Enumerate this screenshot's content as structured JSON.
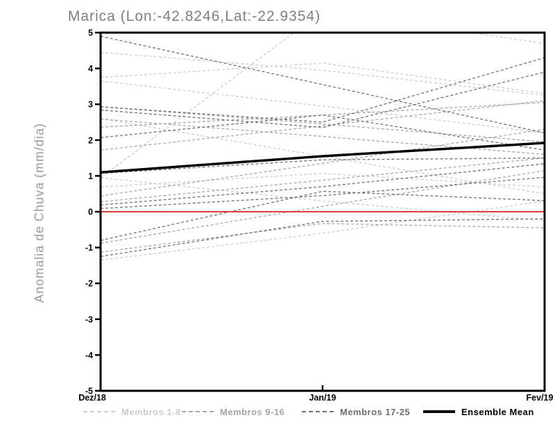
{
  "window": {
    "background": "#ffffff"
  },
  "chart_data": {
    "type": "line",
    "title": "Marica (Lon:-42.8246,Lat:-22.9354)",
    "ylabel": "Anomalia de Chuva (mm/dia)",
    "x_categories": [
      "Dez/18",
      "Jan/19",
      "Fev/19"
    ],
    "ylim": [
      -5,
      5
    ],
    "yticks": [
      5,
      4,
      3,
      2,
      1,
      0,
      -1,
      -2,
      -3,
      -4,
      -5
    ],
    "grid": false,
    "frame_color": "#000000",
    "zero_line": {
      "value": 0,
      "color": "#e03a30"
    },
    "legend_position": "bottom",
    "groups": [
      {
        "name": "Membros 1-8",
        "color": "#cccccc",
        "style": "dashed"
      },
      {
        "name": "Membros 9-16",
        "color": "#a6a6a6",
        "style": "dashed"
      },
      {
        "name": "Membros 17-25",
        "color": "#6f6f6f",
        "style": "dashed"
      },
      {
        "name": "Ensemble Mean",
        "color": "#000000",
        "style": "solid"
      }
    ],
    "members": [
      {
        "group": 0,
        "values": [
          3.75,
          4.15,
          3.3
        ]
      },
      {
        "group": 0,
        "values": [
          3.65,
          2.95,
          2.2
        ]
      },
      {
        "group": 0,
        "values": [
          0.95,
          5.6,
          4.7
        ]
      },
      {
        "group": 0,
        "values": [
          4.45,
          3.95,
          3.25
        ]
      },
      {
        "group": 0,
        "values": [
          0.69,
          1.07,
          0.69
        ]
      },
      {
        "group": 0,
        "values": [
          -1.35,
          -0.6,
          0.3
        ]
      },
      {
        "group": 0,
        "values": [
          2.6,
          1.55,
          0.5
        ]
      },
      {
        "group": 0,
        "values": [
          0.95,
          0.3,
          -0.25
        ]
      },
      {
        "group": 1,
        "values": [
          2.93,
          2.45,
          1.95
        ]
      },
      {
        "group": 1,
        "values": [
          2.59,
          2.1,
          1.6
        ]
      },
      {
        "group": 1,
        "values": [
          2.36,
          2.7,
          3.05
        ]
      },
      {
        "group": 1,
        "values": [
          1.72,
          2.4,
          3.1
        ]
      },
      {
        "group": 1,
        "values": [
          0.44,
          1.35,
          2.3
        ]
      },
      {
        "group": 1,
        "values": [
          0.28,
          0.88,
          1.5
        ]
      },
      {
        "group": 1,
        "values": [
          -0.88,
          0.15,
          1.15
        ]
      },
      {
        "group": 1,
        "values": [
          -1.13,
          -0.33,
          -0.45
        ]
      },
      {
        "group": 2,
        "values": [
          4.9,
          3.55,
          2.2
        ]
      },
      {
        "group": 2,
        "values": [
          2.93,
          2.5,
          4.3
        ]
      },
      {
        "group": 2,
        "values": [
          2.84,
          2.35,
          3.9
        ]
      },
      {
        "group": 2,
        "values": [
          2.07,
          2.7,
          1.72
        ]
      },
      {
        "group": 2,
        "values": [
          1.07,
          1.45,
          1.5
        ]
      },
      {
        "group": 2,
        "values": [
          0.19,
          0.7,
          1.34
        ]
      },
      {
        "group": 2,
        "values": [
          0.09,
          0.45,
          0.96
        ]
      },
      {
        "group": 2,
        "values": [
          -0.8,
          0.57,
          0.31
        ]
      },
      {
        "group": 2,
        "values": [
          -1.25,
          -0.27,
          -0.2
        ]
      }
    ],
    "ensemble_mean": {
      "name": "Ensemble Mean",
      "values": [
        1.1,
        1.55,
        1.92
      ]
    }
  }
}
